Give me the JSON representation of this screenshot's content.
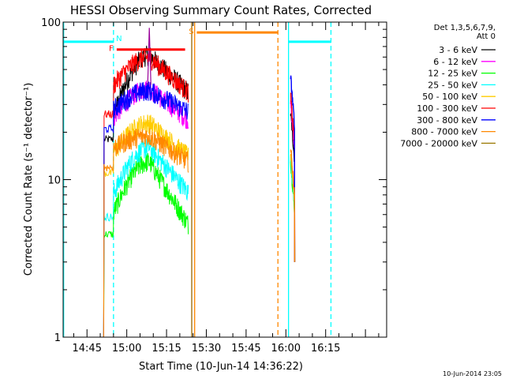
{
  "chart_data": {
    "type": "line",
    "title": "HESSI Observing Summary Count Rates, Corrected",
    "xlabel": "Start Time (10-Jun-14 14:36:22)",
    "ylabel": "Corrected Count Rate (s⁻¹ detector⁻¹)",
    "yscale": "log",
    "ylim": [
      1,
      100
    ],
    "xlim_minutes": [
      36,
      158
    ],
    "y_ticks": [
      "1",
      "10",
      "100"
    ],
    "x_ticks": [
      {
        "minute": 45,
        "label": "14:45"
      },
      {
        "minute": 60,
        "label": "15:00"
      },
      {
        "minute": 75,
        "label": "15:15"
      },
      {
        "minute": 90,
        "label": "15:30"
      },
      {
        "minute": 105,
        "label": "15:45"
      },
      {
        "minute": 120,
        "label": "16:00"
      },
      {
        "minute": 135,
        "label": "16:15"
      }
    ],
    "legend_header": [
      "Det 1,3,5,6,7,9,",
      "Att 0"
    ],
    "legend_position": "right",
    "footer": "10-Jun-2014 23:05",
    "series": [
      {
        "name": "3 - 6 keV",
        "color": "#000000",
        "pre": 18,
        "base": 26,
        "peak": 62,
        "end": 36,
        "post": 27
      },
      {
        "name": "6 - 12 keV",
        "color": "#ff00ff",
        "pre": null,
        "base": 25,
        "peak": 38,
        "end": 24,
        "post": 31
      },
      {
        "name": "12 - 25 keV",
        "color": "#00ff00",
        "pre": 4.5,
        "base": 6.2,
        "peak": 13,
        "end": 5.2,
        "post": 13
      },
      {
        "name": "25 - 50 keV",
        "color": "#00ffff",
        "pre": 5.8,
        "base": 8.2,
        "peak": 16,
        "end": 8.3,
        "post": 14
      },
      {
        "name": "50 - 100 keV",
        "color": "#ffcc00",
        "pre": 11,
        "base": 15,
        "peak": 23,
        "end": 14,
        "post": 15
      },
      {
        "name": "100 - 300 keV",
        "color": "#ff0000",
        "pre": 26,
        "base": 40,
        "peak": 60,
        "end": 36,
        "post": 34
      },
      {
        "name": "300 - 800 keV",
        "color": "#0000ff",
        "pre": 21,
        "base": 28,
        "peak": 37,
        "end": 27,
        "post": 45
      },
      {
        "name": "800 - 7000 keV",
        "color": "#ff8800",
        "pre": 12,
        "base": 16,
        "peak": 19,
        "end": 13,
        "post": 16
      },
      {
        "name": "7000 - 20000 keV",
        "color": "#997700",
        "pre": null,
        "base": null,
        "peak": null,
        "end": null,
        "post": null
      }
    ],
    "segments": {
      "pre_start": 51.3,
      "main_start": 55.0,
      "main_end": 83.3,
      "post_start": 121.8,
      "post_end": 123.3,
      "peak_minute": 68.5
    },
    "flare_spike": {
      "minute": 68.5,
      "value": 92
    },
    "flags": [
      {
        "label": "F",
        "color": "#ff0000",
        "start": 56.2,
        "end": 82.0,
        "level": 67
      },
      {
        "label": "S",
        "color": "#ff8800",
        "start": 86.4,
        "end": 117.0,
        "level": 86
      },
      {
        "label": "N",
        "color": "#00ffff",
        "start": 36.0,
        "end": 55.0,
        "level": 75
      },
      {
        "label": "",
        "color": "#00ffff",
        "start": 121.0,
        "end": 137.0,
        "level": 75
      }
    ],
    "vertical_markers": [
      {
        "minute": 36.2,
        "color": "#00ffff",
        "style": "solid"
      },
      {
        "minute": 55.0,
        "color": "#00ffff",
        "style": "dashed"
      },
      {
        "minute": 121.0,
        "color": "#00ffff",
        "style": "solid"
      },
      {
        "minute": 137.0,
        "color": "#00ffff",
        "style": "dashed"
      },
      {
        "minute": 85.6,
        "color": "#ff8800",
        "style": "solid"
      },
      {
        "minute": 117.0,
        "color": "#ff8800",
        "style": "dashed"
      },
      {
        "minute": 84.5,
        "color": "#996600",
        "style": "solid"
      }
    ]
  }
}
